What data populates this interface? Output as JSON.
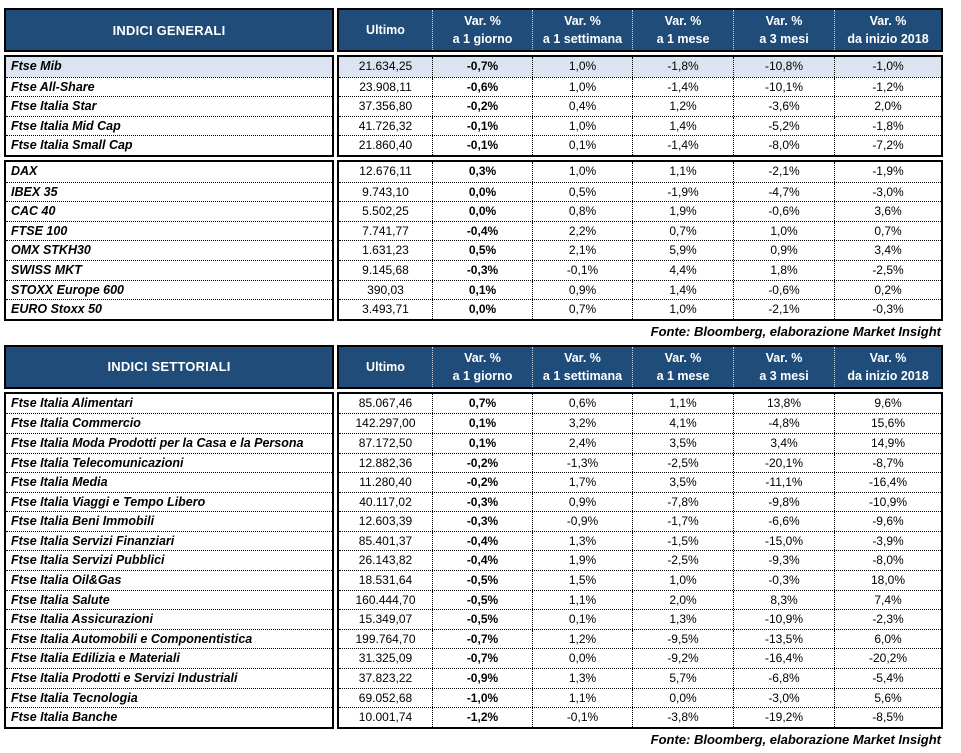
{
  "colors": {
    "header_bg": "#1F4C78",
    "header_text": "#FFFFFF",
    "header_divider": "#C4D0E0",
    "highlight_row_bg": "#DCE4F1",
    "border": "#000000"
  },
  "chart_data": [
    {
      "type": "table",
      "title": "INDICI GENERALI",
      "source": "Fonte: Bloomberg, elaborazione Market Insight",
      "columns": [
        "Indice",
        "Ultimo",
        "Var. % a 1 giorno",
        "Var. % a 1 settimana",
        "Var. % a 1 mese",
        "Var. % a 3 mesi",
        "Var. % da inizio 2018"
      ],
      "column_headers": {
        "ultimo": "Ultimo",
        "var_label": "Var. %",
        "var_periods": [
          "a 1 giorno",
          "a 1 settimana",
          "a 1 mese",
          "a 3 mesi",
          "da inizio 2018"
        ]
      },
      "groups": [
        {
          "rows": [
            {
              "label": "Ftse Mib",
              "ultimo": "21.634,25",
              "vars": [
                "-0,7%",
                "1,0%",
                "-1,8%",
                "-10,8%",
                "-1,0%"
              ],
              "highlight": true
            },
            {
              "label": "Ftse All-Share",
              "ultimo": "23.908,11",
              "vars": [
                "-0,6%",
                "1,0%",
                "-1,4%",
                "-10,1%",
                "-1,2%"
              ],
              "highlight": false
            },
            {
              "label": "Ftse Italia Star",
              "ultimo": "37.356,80",
              "vars": [
                "-0,2%",
                "0,4%",
                "1,2%",
                "-3,6%",
                "2,0%"
              ],
              "highlight": false
            },
            {
              "label": "Ftse Italia Mid Cap",
              "ultimo": "41.726,32",
              "vars": [
                "-0,1%",
                "1,0%",
                "1,4%",
                "-5,2%",
                "-1,8%"
              ],
              "highlight": false
            },
            {
              "label": "Ftse Italia Small Cap",
              "ultimo": "21.860,40",
              "vars": [
                "-0,1%",
                "0,1%",
                "-1,4%",
                "-8,0%",
                "-7,2%"
              ],
              "highlight": false
            }
          ]
        },
        {
          "rows": [
            {
              "label": "DAX",
              "ultimo": "12.676,11",
              "vars": [
                "0,3%",
                "1,0%",
                "1,1%",
                "-2,1%",
                "-1,9%"
              ],
              "highlight": false
            },
            {
              "label": "IBEX 35",
              "ultimo": "9.743,10",
              "vars": [
                "0,0%",
                "0,5%",
                "-1,9%",
                "-4,7%",
                "-3,0%"
              ],
              "highlight": false
            },
            {
              "label": "CAC 40",
              "ultimo": "5.502,25",
              "vars": [
                "0,0%",
                "0,8%",
                "1,9%",
                "-0,6%",
                "3,6%"
              ],
              "highlight": false
            },
            {
              "label": "FTSE 100",
              "ultimo": "7.741,77",
              "vars": [
                "-0,4%",
                "2,2%",
                "0,7%",
                "1,0%",
                "0,7%"
              ],
              "highlight": false
            },
            {
              "label": "OMX STKH30",
              "ultimo": "1.631,23",
              "vars": [
                "0,5%",
                "2,1%",
                "5,9%",
                "0,9%",
                "3,4%"
              ],
              "highlight": false
            },
            {
              "label": "SWISS MKT",
              "ultimo": "9.145,68",
              "vars": [
                "-0,3%",
                "-0,1%",
                "4,4%",
                "1,8%",
                "-2,5%"
              ],
              "highlight": false
            },
            {
              "label": "STOXX Europe 600",
              "ultimo": "390,03",
              "vars": [
                "0,1%",
                "0,9%",
                "1,4%",
                "-0,6%",
                "0,2%"
              ],
              "highlight": false
            },
            {
              "label": "EURO Stoxx 50",
              "ultimo": "3.493,71",
              "vars": [
                "0,0%",
                "0,7%",
                "1,0%",
                "-2,1%",
                "-0,3%"
              ],
              "highlight": false
            }
          ]
        }
      ]
    },
    {
      "type": "table",
      "title": "INDICI SETTORIALI",
      "source": "Fonte: Bloomberg, elaborazione Market Insight",
      "columns": [
        "Indice",
        "Ultimo",
        "Var. % a 1 giorno",
        "Var. % a 1 settimana",
        "Var. % a 1 mese",
        "Var. % a 3 mesi",
        "Var. % da inizio 2018"
      ],
      "column_headers": {
        "ultimo": "Ultimo",
        "var_label": "Var. %",
        "var_periods": [
          "a 1 giorno",
          "a 1 settimana",
          "a 1 mese",
          "a 3 mesi",
          "da inizio 2018"
        ]
      },
      "groups": [
        {
          "rows": [
            {
              "label": "Ftse Italia Alimentari",
              "ultimo": "85.067,46",
              "vars": [
                "0,7%",
                "0,6%",
                "1,1%",
                "13,8%",
                "9,6%"
              ],
              "highlight": false
            },
            {
              "label": "Ftse Italia Commercio",
              "ultimo": "142.297,00",
              "vars": [
                "0,1%",
                "3,2%",
                "4,1%",
                "-4,8%",
                "15,6%"
              ],
              "highlight": false
            },
            {
              "label": "Ftse Italia Moda Prodotti per la Casa e la Persona",
              "ultimo": "87.172,50",
              "vars": [
                "0,1%",
                "2,4%",
                "3,5%",
                "3,4%",
                "14,9%"
              ],
              "highlight": false
            },
            {
              "label": "Ftse Italia Telecomunicazioni",
              "ultimo": "12.882,36",
              "vars": [
                "-0,2%",
                "-1,3%",
                "-2,5%",
                "-20,1%",
                "-8,7%"
              ],
              "highlight": false
            },
            {
              "label": "Ftse Italia Media",
              "ultimo": "11.280,40",
              "vars": [
                "-0,2%",
                "1,7%",
                "3,5%",
                "-11,1%",
                "-16,4%"
              ],
              "highlight": false
            },
            {
              "label": "Ftse Italia Viaggi e Tempo Libero",
              "ultimo": "40.117,02",
              "vars": [
                "-0,3%",
                "0,9%",
                "-7,8%",
                "-9,8%",
                "-10,9%"
              ],
              "highlight": false
            },
            {
              "label": "Ftse Italia Beni Immobili",
              "ultimo": "12.603,39",
              "vars": [
                "-0,3%",
                "-0,9%",
                "-1,7%",
                "-6,6%",
                "-9,6%"
              ],
              "highlight": false
            },
            {
              "label": "Ftse Italia Servizi Finanziari",
              "ultimo": "85.401,37",
              "vars": [
                "-0,4%",
                "1,3%",
                "-1,5%",
                "-15,0%",
                "-3,9%"
              ],
              "highlight": false
            },
            {
              "label": "Ftse Italia Servizi Pubblici",
              "ultimo": "26.143,82",
              "vars": [
                "-0,4%",
                "1,9%",
                "-2,5%",
                "-9,3%",
                "-8,0%"
              ],
              "highlight": false
            },
            {
              "label": "Ftse Italia Oil&Gas",
              "ultimo": "18.531,64",
              "vars": [
                "-0,5%",
                "1,5%",
                "1,0%",
                "-0,3%",
                "18,0%"
              ],
              "highlight": false
            },
            {
              "label": "Ftse Italia Salute",
              "ultimo": "160.444,70",
              "vars": [
                "-0,5%",
                "1,1%",
                "2,0%",
                "8,3%",
                "7,4%"
              ],
              "highlight": false
            },
            {
              "label": "Ftse Italia Assicurazioni",
              "ultimo": "15.349,07",
              "vars": [
                "-0,5%",
                "0,1%",
                "1,3%",
                "-10,9%",
                "-2,3%"
              ],
              "highlight": false
            },
            {
              "label": "Ftse Italia Automobili e Componentistica",
              "ultimo": "199.764,70",
              "vars": [
                "-0,7%",
                "1,2%",
                "-9,5%",
                "-13,5%",
                "6,0%"
              ],
              "highlight": false
            },
            {
              "label": "Ftse Italia Edilizia e Materiali",
              "ultimo": "31.325,09",
              "vars": [
                "-0,7%",
                "0,0%",
                "-9,2%",
                "-16,4%",
                "-20,2%"
              ],
              "highlight": false
            },
            {
              "label": "Ftse Italia Prodotti e Servizi Industriali",
              "ultimo": "37.823,22",
              "vars": [
                "-0,9%",
                "1,3%",
                "5,7%",
                "-6,8%",
                "-5,4%"
              ],
              "highlight": false
            },
            {
              "label": "Ftse Italia Tecnologia",
              "ultimo": "69.052,68",
              "vars": [
                "-1,0%",
                "1,1%",
                "0,0%",
                "-3,0%",
                "5,6%"
              ],
              "highlight": false
            },
            {
              "label": "Ftse Italia Banche",
              "ultimo": "10.001,74",
              "vars": [
                "-1,2%",
                "-0,1%",
                "-3,8%",
                "-19,2%",
                "-8,5%"
              ],
              "highlight": false
            }
          ]
        }
      ]
    }
  ]
}
